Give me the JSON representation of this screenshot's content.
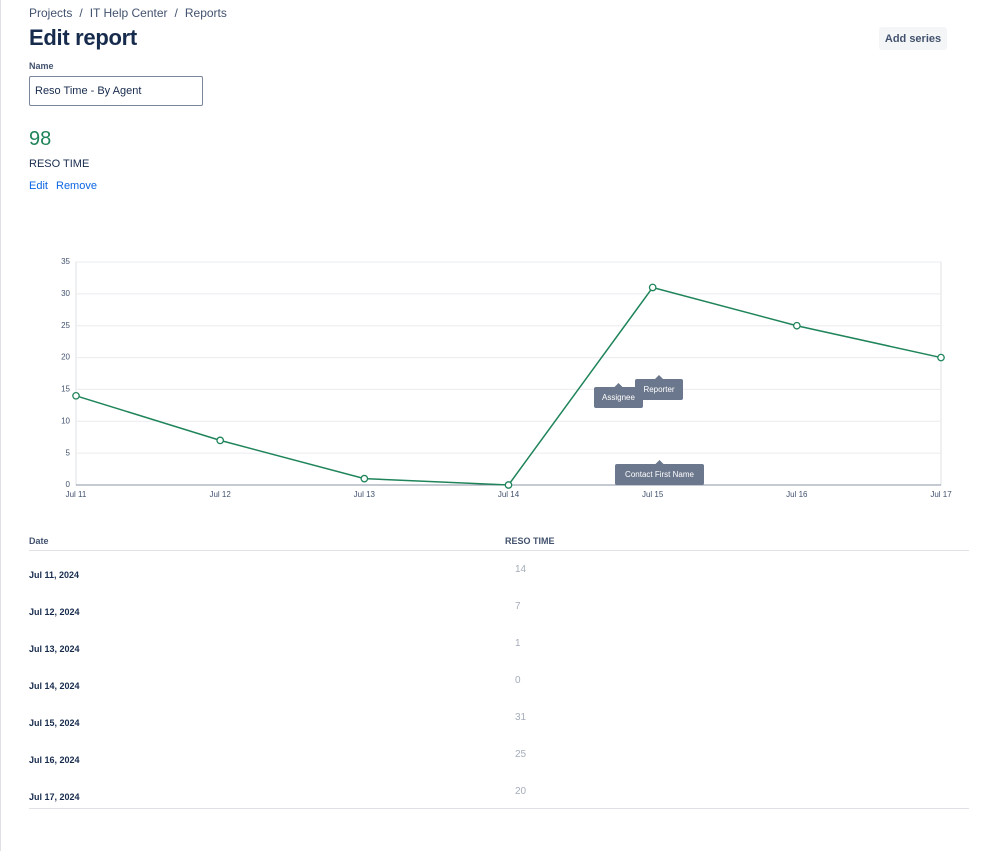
{
  "breadcrumbs": {
    "items": [
      "Projects",
      "IT Help Center",
      "Reports"
    ],
    "separator": "/"
  },
  "header": {
    "title": "Edit report",
    "button": "Add series"
  },
  "name_field": {
    "label": "Name",
    "value": "Reso Time - By Agent"
  },
  "summary": {
    "value": 98,
    "label": "RESO TIME",
    "actions": [
      "Edit",
      "Remove"
    ]
  },
  "chart_data": {
    "type": "line",
    "categories": [
      "Jul 11",
      "Jul 12",
      "Jul 13",
      "Jul 14",
      "Jul 15",
      "Jul 16",
      "Jul 17"
    ],
    "values": [
      14,
      7,
      1,
      0,
      31,
      25,
      20
    ],
    "color": "#1f845a",
    "ylim": [
      0,
      35
    ],
    "yticks": [
      0,
      5,
      10,
      15,
      20,
      25,
      30,
      35
    ],
    "grid": true,
    "annotations": [
      "Assignee",
      "Reporter",
      "Contact First Name"
    ]
  },
  "table": {
    "headers": [
      "Date",
      "RESO TIME"
    ],
    "rows": [
      [
        "Jul 11, 2024",
        14
      ],
      [
        "Jul 12, 2024",
        7
      ],
      [
        "Jul 13, 2024",
        1
      ],
      [
        "Jul 14, 2024",
        0
      ],
      [
        "Jul 15, 2024",
        31
      ],
      [
        "Jul 16, 2024",
        25
      ],
      [
        "Jul 17, 2024",
        20
      ]
    ]
  }
}
